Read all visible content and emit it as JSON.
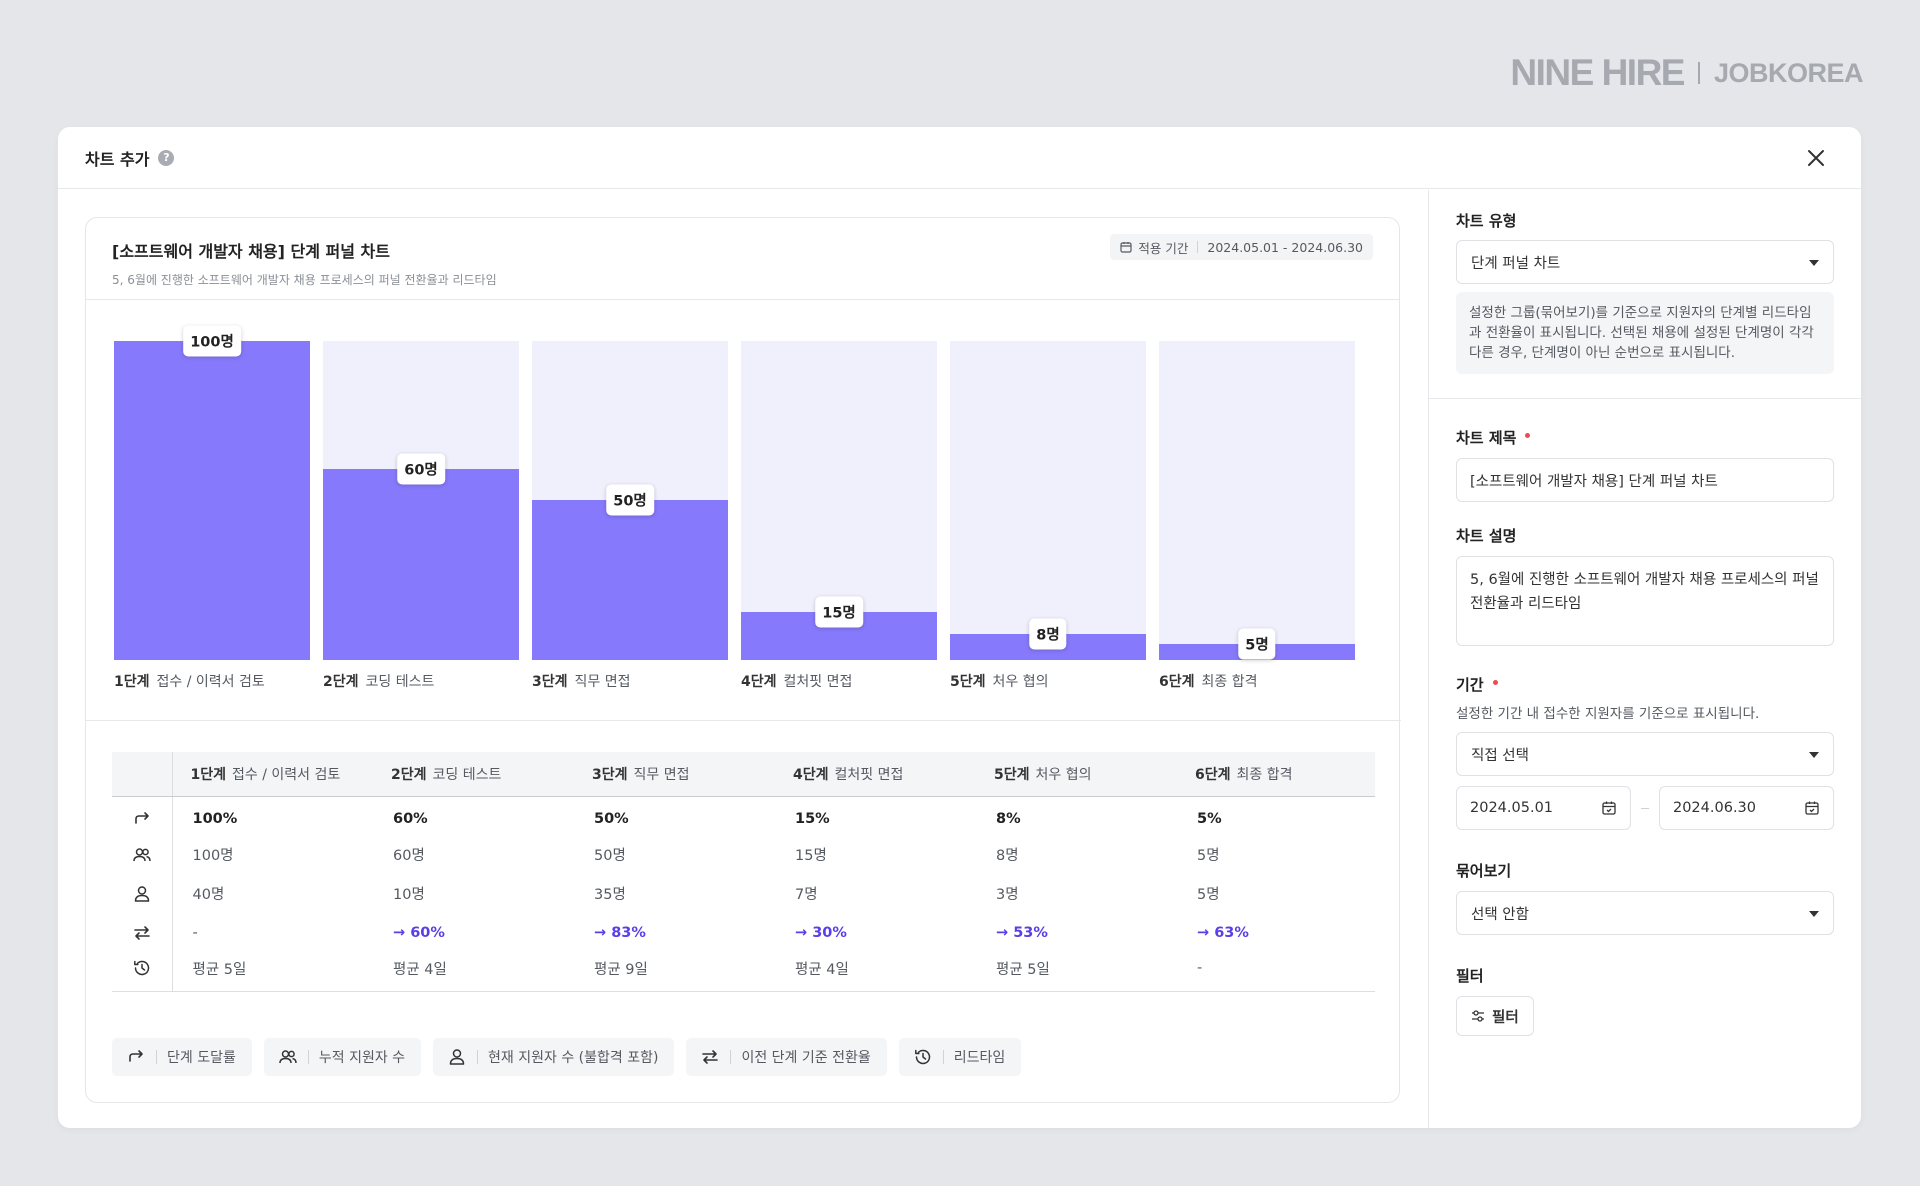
{
  "brand": {
    "primary": "NINE HIRE",
    "secondary": "JOBKOREA"
  },
  "modal": {
    "title": "차트 추가",
    "help_icon": "?"
  },
  "card": {
    "title": "[소프트웨어 개발자 채용] 단계 퍼널 차트",
    "description": "5, 6월에 진행한 소프트웨어 개발자 채용 프로세스의 퍼널 전환율과 리드타임",
    "period_label": "적용 기간",
    "period_value": "2024.05.01 - 2024.06.30"
  },
  "chart_data": {
    "type": "bar",
    "categories": [
      "1단계 접수 / 이력서 검토",
      "2단계 코딩 테스트",
      "3단계 직무 면접",
      "4단계 컬처핏 면접",
      "5단계 처우 협의",
      "6단계 최종 합격"
    ],
    "values": [
      100,
      60,
      50,
      15,
      8,
      5
    ],
    "ylim": [
      0,
      100
    ],
    "fill_color": "#8779fb",
    "track_color": "#f0f0fc",
    "stages": [
      {
        "step": "1단계",
        "name": "접수 / 이력서 검토",
        "badge": "100명"
      },
      {
        "step": "2단계",
        "name": "코딩 테스트",
        "badge": "60명"
      },
      {
        "step": "3단계",
        "name": "직무 면접",
        "badge": "50명"
      },
      {
        "step": "4단계",
        "name": "컬처핏 면접",
        "badge": "15명"
      },
      {
        "step": "5단계",
        "name": "처우 협의",
        "badge": "8명"
      },
      {
        "step": "6단계",
        "name": "최종 합격",
        "badge": "5명"
      }
    ]
  },
  "table": {
    "rows": [
      {
        "icon": "redo-arrow-icon",
        "style": "bold",
        "cells": [
          "100%",
          "60%",
          "50%",
          "15%",
          "8%",
          "5%"
        ]
      },
      {
        "icon": "users-icon",
        "style": "normal",
        "cells": [
          "100명",
          "60명",
          "50명",
          "15명",
          "8명",
          "5명"
        ]
      },
      {
        "icon": "user-icon",
        "style": "normal",
        "cells": [
          "40명",
          "10명",
          "35명",
          "7명",
          "3명",
          "5명"
        ]
      },
      {
        "icon": "swap-arrows-icon",
        "style": "conv",
        "cells": [
          "-",
          "→ 60%",
          "→ 83%",
          "→ 30%",
          "→ 53%",
          "→ 63%"
        ]
      },
      {
        "icon": "history-clock-icon",
        "style": "normal",
        "cells": [
          "평균 5일",
          "평균 4일",
          "평균 9일",
          "평균 4일",
          "평균 5일",
          "-"
        ]
      }
    ]
  },
  "legend": [
    {
      "icon": "redo-arrow-icon",
      "label": "단계 도달률"
    },
    {
      "icon": "users-icon",
      "label": "누적 지원자 수"
    },
    {
      "icon": "user-icon",
      "label": "현재 지원자 수 (불합격 포함)"
    },
    {
      "icon": "swap-arrows-icon",
      "label": "이전 단계 기준 전환율"
    },
    {
      "icon": "history-clock-icon",
      "label": "리드타임"
    }
  ],
  "side": {
    "chart_type_label": "차트 유형",
    "chart_type_value": "단계 퍼널 차트",
    "chart_type_info": "설정한 그룹(묶어보기)를 기준으로 지원자의 단계별 리드타임과 전환율이 표시됩니다. 선택된 채용에 설정된 단계명이 각각 다른 경우, 단계명이 아닌 순번으로 표시됩니다.",
    "title_label": "차트 제목",
    "title_value": "[소프트웨어 개발자 채용] 단계 퍼널 차트",
    "desc_label": "차트 설명",
    "desc_value": "5, 6월에 진행한 소프트웨어 개발자 채용 프로세스의 퍼널 전환율과 리드타임",
    "period_label": "기간",
    "period_hint": "설정한 기간 내 접수한 지원자를 기준으로 표시됩니다.",
    "period_mode": "직접 선택",
    "start_date": "2024.05.01",
    "end_date": "2024.06.30",
    "group_label": "묶어보기",
    "group_value": "선택 안함",
    "filter_label": "필터",
    "filter_button": "필터"
  },
  "colors": {
    "accent": "#8779fb",
    "conversion": "#5b3ee8",
    "required": "#ee4a52"
  }
}
